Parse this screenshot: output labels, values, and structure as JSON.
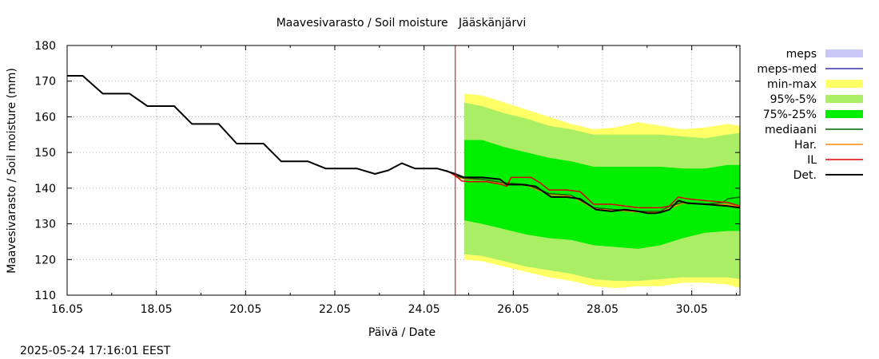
{
  "chart_data": {
    "type": "line",
    "title": "Maavesivarasto / Soil moisture   Jääskänjärvi",
    "xlabel": "Päivä / Date",
    "ylabel": "Maavesivarasto / Soil moisture (mm)",
    "timestamp": "2025-05-24 17:16:01 EEST",
    "xlim": [
      16.0,
      31.08
    ],
    "ylim": [
      110,
      180
    ],
    "grid": true,
    "legend_position": "right",
    "x_ticks": [
      {
        "value": 16,
        "label": "16.05"
      },
      {
        "value": 18,
        "label": "18.05"
      },
      {
        "value": 20,
        "label": "20.05"
      },
      {
        "value": 22,
        "label": "22.05"
      },
      {
        "value": 24,
        "label": "24.05"
      },
      {
        "value": 26,
        "label": "26.05"
      },
      {
        "value": 28,
        "label": "28.05"
      },
      {
        "value": 30,
        "label": "30.05"
      }
    ],
    "y_ticks": [
      {
        "value": 110,
        "label": "110"
      },
      {
        "value": 120,
        "label": "120"
      },
      {
        "value": 130,
        "label": "130"
      },
      {
        "value": 140,
        "label": "140"
      },
      {
        "value": 150,
        "label": "150"
      },
      {
        "value": 160,
        "label": "160"
      },
      {
        "value": 170,
        "label": "170"
      },
      {
        "value": 180,
        "label": "180"
      }
    ],
    "vline": {
      "x": 24.7,
      "color": "#cc0000"
    },
    "legend": [
      {
        "label": "meps",
        "kind": "box",
        "color": "#c8c8f8"
      },
      {
        "label": "meps-med",
        "kind": "line",
        "color": "#3333aa"
      },
      {
        "label": "min-max",
        "kind": "box",
        "color": "#ffff66"
      },
      {
        "label": "95%-5%",
        "kind": "box",
        "color": "#aaee66"
      },
      {
        "label": "75%-25%",
        "kind": "box",
        "color": "#00ee00"
      },
      {
        "label": "mediaani",
        "kind": "line",
        "color": "#006600"
      },
      {
        "label": "Har.",
        "kind": "line",
        "color": "#ff8800"
      },
      {
        "label": "IL",
        "kind": "line",
        "color": "#dd0000"
      },
      {
        "label": "Det.",
        "kind": "line",
        "color": "#000000"
      }
    ],
    "bands": [
      {
        "name": "min-max",
        "color": "#ffff66",
        "x": [
          24.9,
          25.3,
          25.8,
          26.3,
          26.8,
          27.3,
          27.8,
          28.3,
          28.8,
          29.3,
          29.8,
          30.3,
          30.8,
          31.08
        ],
        "upper": [
          166.5,
          166.0,
          164.0,
          162.0,
          160.0,
          158.0,
          156.5,
          157.0,
          158.5,
          157.5,
          156.5,
          157.0,
          158.0,
          157.5
        ],
        "lower": [
          120.0,
          119.5,
          118.0,
          116.5,
          115.0,
          114.0,
          112.5,
          112.0,
          112.5,
          112.5,
          113.5,
          113.5,
          113.0,
          112.0
        ]
      },
      {
        "name": "95%-5%",
        "color": "#aaee66",
        "x": [
          24.9,
          25.3,
          25.8,
          26.3,
          26.8,
          27.3,
          27.8,
          28.3,
          28.8,
          29.3,
          29.8,
          30.3,
          30.8,
          31.08
        ],
        "upper": [
          164.0,
          163.0,
          161.0,
          159.5,
          157.5,
          156.5,
          155.0,
          155.0,
          155.0,
          155.0,
          154.5,
          154.0,
          155.0,
          155.5
        ],
        "lower": [
          121.5,
          121.0,
          119.5,
          118.0,
          117.0,
          116.0,
          114.5,
          114.0,
          114.0,
          114.5,
          115.0,
          115.0,
          115.0,
          114.5
        ]
      },
      {
        "name": "75%-25%",
        "color": "#00ee00",
        "x": [
          24.9,
          25.3,
          25.8,
          26.3,
          26.8,
          27.3,
          27.8,
          28.3,
          28.8,
          29.3,
          29.8,
          30.3,
          30.8,
          31.08
        ],
        "upper": [
          153.5,
          153.5,
          151.5,
          150.0,
          148.5,
          147.5,
          146.0,
          146.0,
          146.0,
          146.0,
          145.5,
          145.5,
          146.5,
          146.5
        ],
        "lower": [
          131.0,
          130.0,
          128.5,
          127.0,
          126.0,
          125.5,
          124.0,
          123.5,
          123.0,
          124.0,
          126.0,
          127.5,
          128.0,
          128.0
        ]
      }
    ],
    "series": [
      {
        "name": "Det.",
        "color": "#000000",
        "x": [
          16.0,
          16.35,
          16.8,
          17.4,
          17.8,
          18.4,
          18.8,
          19.4,
          19.8,
          20.4,
          20.8,
          21.4,
          21.8,
          22.5,
          22.9,
          23.2,
          23.5,
          23.8,
          24.3,
          24.5,
          24.7,
          24.9,
          25.3,
          25.7,
          25.85,
          26.2,
          26.5,
          26.85,
          27.2,
          27.5,
          27.85,
          28.2,
          28.5,
          28.8,
          29.0,
          29.2,
          29.3,
          29.5,
          29.7,
          29.9,
          30.3,
          30.8,
          31.08
        ],
        "y": [
          171.5,
          171.5,
          166.5,
          166.5,
          163.0,
          163.0,
          158.0,
          158.0,
          152.5,
          152.5,
          147.5,
          147.5,
          145.5,
          145.5,
          144.0,
          145.0,
          147.0,
          145.5,
          145.5,
          144.8,
          144.0,
          143.0,
          143.0,
          142.5,
          141.0,
          141.0,
          140.5,
          137.5,
          137.5,
          137.0,
          134.0,
          133.5,
          134.0,
          133.5,
          133.0,
          133.0,
          133.2,
          134.0,
          136.5,
          135.8,
          135.5,
          135.0,
          134.5
        ]
      },
      {
        "name": "IL",
        "color": "#dd0000",
        "x": [
          24.5,
          24.7,
          24.85,
          25.0,
          25.4,
          25.75,
          25.85,
          25.95,
          26.4,
          26.6,
          26.8,
          27.2,
          27.5,
          27.8,
          28.2,
          28.5,
          28.8,
          29.3,
          29.5,
          29.7,
          29.9,
          30.3,
          30.8,
          31.08
        ],
        "y": [
          145.0,
          143.5,
          142.0,
          141.8,
          141.8,
          141.0,
          140.5,
          143.0,
          143.0,
          141.5,
          139.5,
          139.5,
          139.0,
          135.5,
          135.5,
          135.0,
          134.5,
          134.5,
          135.0,
          137.5,
          137.0,
          136.5,
          136.0,
          135.0
        ]
      },
      {
        "name": "mediaani",
        "color": "#006600",
        "x": [
          24.7,
          24.9,
          25.3,
          25.8,
          26.3,
          26.8,
          27.3,
          27.8,
          28.3,
          28.8,
          29.3,
          29.5,
          29.8,
          30.3,
          30.7,
          30.8,
          31.08
        ],
        "y": [
          143.5,
          142.8,
          142.5,
          141.5,
          141.0,
          138.5,
          138.0,
          134.5,
          134.0,
          133.5,
          133.5,
          135.0,
          136.0,
          135.5,
          136.0,
          137.0,
          137.5
        ]
      },
      {
        "name": "Har.",
        "color": "#ff8800",
        "x": [
          24.7,
          24.9,
          25.3,
          25.8,
          26.3,
          26.8,
          27.3,
          27.8,
          28.3,
          28.8,
          29.3,
          29.8,
          30.3,
          30.8,
          31.08
        ],
        "y": [
          143.2,
          142.6,
          142.4,
          141.3,
          140.8,
          138.2,
          137.8,
          134.3,
          133.8,
          133.3,
          133.3,
          135.8,
          135.5,
          135.4,
          134.8
        ]
      }
    ]
  }
}
